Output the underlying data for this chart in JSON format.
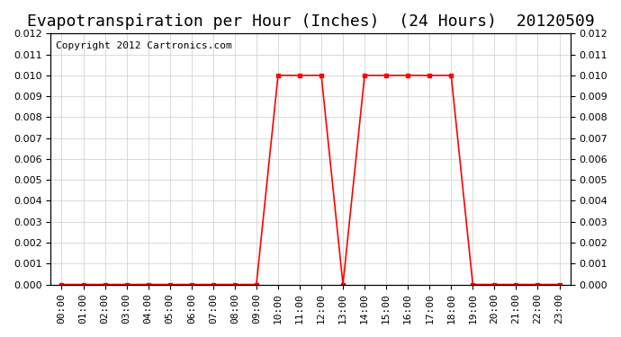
{
  "title": "Evapotranspiration per Hour (Inches)  (24 Hours)  20120509",
  "copyright_text": "Copyright 2012 Cartronics.com",
  "hours": [
    0,
    1,
    2,
    3,
    4,
    5,
    6,
    7,
    8,
    9,
    10,
    11,
    12,
    13,
    14,
    15,
    16,
    17,
    18,
    19,
    20,
    21,
    22,
    23
  ],
  "values": [
    0.0,
    0.0,
    0.0,
    0.0,
    0.0,
    0.0,
    0.0,
    0.0,
    0.0,
    0.0,
    0.01,
    0.01,
    0.01,
    0.0,
    0.01,
    0.01,
    0.01,
    0.01,
    0.01,
    0.0,
    0.0,
    0.0,
    0.0,
    0.0
  ],
  "line_color": "#ff0000",
  "marker": "s",
  "marker_size": 3,
  "ylim": [
    0,
    0.012
  ],
  "yticks": [
    0.0,
    0.001,
    0.002,
    0.003,
    0.004,
    0.005,
    0.006,
    0.007,
    0.008,
    0.009,
    0.01,
    0.011,
    0.012
  ],
  "xtick_labels": [
    "00:00",
    "01:00",
    "02:00",
    "03:00",
    "04:00",
    "05:00",
    "06:00",
    "07:00",
    "08:00",
    "09:00",
    "10:00",
    "11:00",
    "12:00",
    "13:00",
    "14:00",
    "15:00",
    "16:00",
    "17:00",
    "18:00",
    "19:00",
    "20:00",
    "21:00",
    "22:00",
    "23:00"
  ],
  "background_color": "#ffffff",
  "grid_color": "#cccccc",
  "title_fontsize": 13,
  "tick_fontsize": 8,
  "copyright_fontsize": 8
}
